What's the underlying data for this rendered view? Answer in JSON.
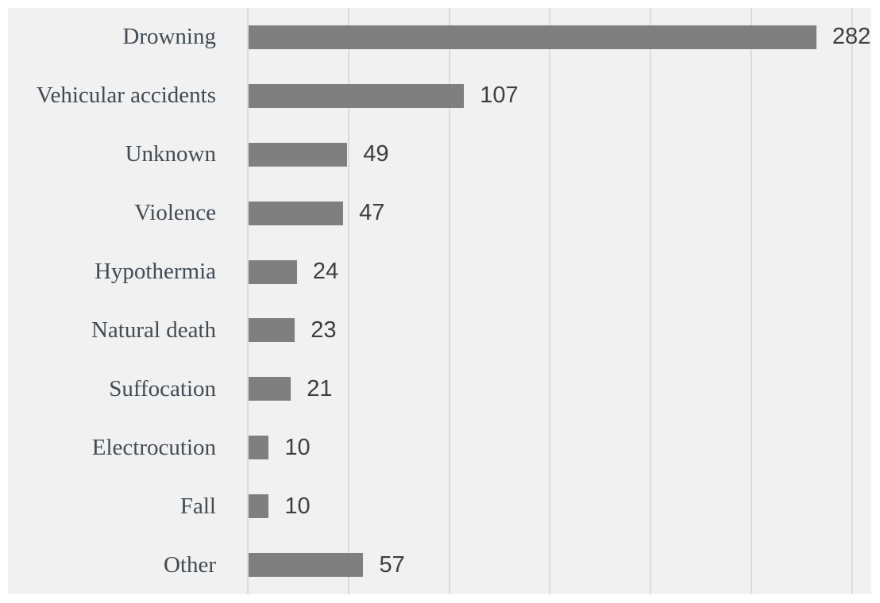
{
  "chart_data": {
    "type": "bar",
    "orientation": "horizontal",
    "title": "",
    "xlabel": "",
    "ylabel": "",
    "categories": [
      "Drowning",
      "Vehicular accidents",
      "Unknown",
      "Violence",
      "Hypothermia",
      "Natural death",
      "Suffocation",
      "Electrocution",
      "Fall",
      "Other"
    ],
    "values": [
      282,
      107,
      49,
      47,
      24,
      23,
      21,
      10,
      10,
      57
    ],
    "value_labels_shown": true,
    "xlim": [
      0,
      314
    ],
    "gridlines": [
      0,
      50,
      100,
      150,
      200,
      250,
      300
    ],
    "grid": "vertical-only",
    "legend": "none",
    "colors": {
      "bar": "#7f7f7f",
      "plot_background": "#f1f1f1",
      "page_background": "#ffffff",
      "gridline": "#dbdbdb",
      "category_label": "#414b54",
      "value_label": "#3d3d3d"
    }
  }
}
